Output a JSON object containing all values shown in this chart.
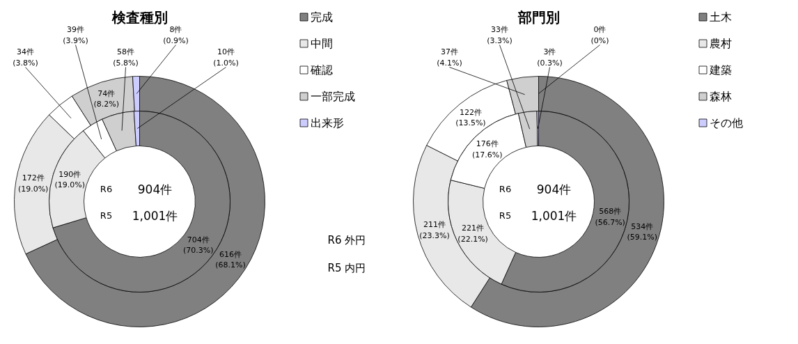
{
  "chart_data": [
    {
      "type": "donut",
      "title": "検査種別",
      "categories": [
        "完成",
        "中間",
        "確認",
        "一部完成",
        "出来形"
      ],
      "colors": [
        "#808080",
        "#e8e8e8",
        "#ffffff",
        "#cfcfcf",
        "#ccccff"
      ],
      "series": [
        {
          "values": [
            616,
            172,
            34,
            74,
            8
          ],
          "value_labels": [
            "616件\n(68.1%)",
            "172件\n(19.0%)",
            "34件\n(3.8%)",
            "74件\n(8.2%)",
            "8件\n(0.9%)"
          ]
        },
        {
          "values": [
            704,
            190,
            39,
            58,
            10
          ],
          "value_labels": [
            "704件\n(70.3%)",
            "190件\n(19.0%)",
            "39件\n(3.9%)",
            "58件\n(5.8%)",
            "10件\n(1.0%)"
          ]
        }
      ],
      "annotations": [
        "R6",
        "904件",
        "R5",
        "1,001件",
        "R6 外円",
        "R5 内円"
      ],
      "legend": "right"
    },
    {
      "type": "donut",
      "title": "部門別",
      "categories": [
        "土木",
        "農村",
        "建築",
        "森林",
        "その他"
      ],
      "colors": [
        "#808080",
        "#e8e8e8",
        "#ffffff",
        "#cfcfcf",
        "#ccccff"
      ],
      "series": [
        {
          "values": [
            534,
            211,
            122,
            37,
            0
          ],
          "value_labels": [
            "534件\n(59.1%)",
            "211件\n(23.3%)",
            "122件\n(13.5%)",
            "37件\n(4.1%)",
            "0件\n(0%)"
          ]
        },
        {
          "values": [
            568,
            221,
            176,
            33,
            3
          ],
          "value_labels": [
            "568件\n(56.7%)",
            "221件\n(22.1%)",
            "176件\n(17.6%)",
            "33件\n(3.3%)",
            "3件\n(0.3%)"
          ]
        }
      ],
      "annotations": [
        "R6",
        "904件",
        "R5",
        "1,001件"
      ],
      "legend": "right"
    }
  ]
}
